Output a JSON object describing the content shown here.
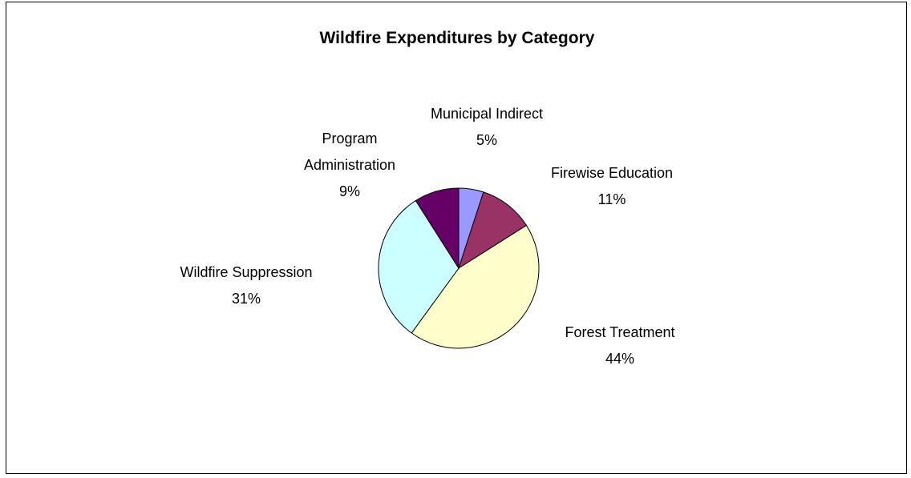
{
  "chart_data": {
    "type": "pie",
    "title": "Wildfire Expenditures by Category",
    "slices": [
      {
        "name": "Municipal Indirect",
        "value": 5,
        "label_lines": [
          "Municipal Indirect"
        ],
        "pct_label": "5%",
        "color": "#9999FF"
      },
      {
        "name": "Firewise Education",
        "value": 11,
        "label_lines": [
          "Firewise Education"
        ],
        "pct_label": "11%",
        "color": "#993366"
      },
      {
        "name": "Forest Treatment",
        "value": 44,
        "label_lines": [
          "Forest Treatment"
        ],
        "pct_label": "44%",
        "color": "#FFFFCC"
      },
      {
        "name": "Wildfire Suppression",
        "value": 31,
        "label_lines": [
          "Wildfire Suppression"
        ],
        "pct_label": "31%",
        "color": "#CCFFFF"
      },
      {
        "name": "Program Administration",
        "value": 9,
        "label_lines": [
          "Program",
          "Administration"
        ],
        "pct_label": "9%",
        "color": "#660066"
      }
    ],
    "start_angle_deg": 0,
    "direction": "clockwise",
    "legend": "none"
  }
}
